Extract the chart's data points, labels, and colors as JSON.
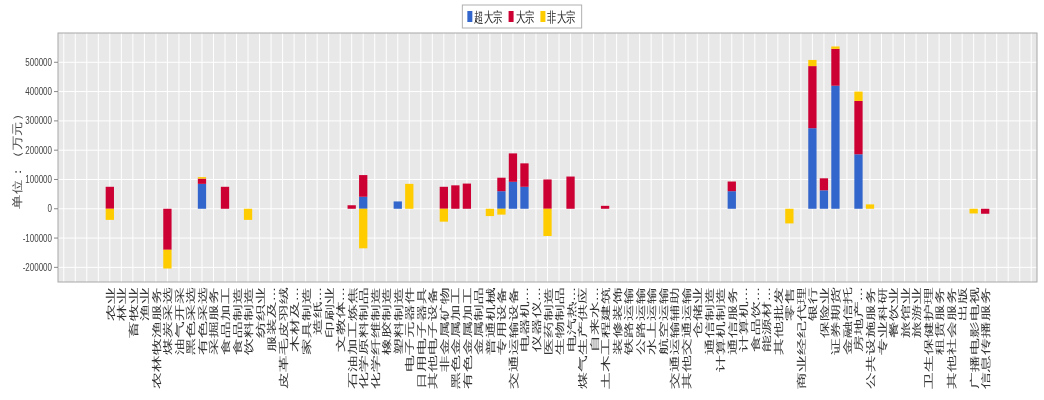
{
  "chart_data": {
    "type": "bar",
    "stacked": true,
    "ylabel": "单位：（万元）",
    "categories": [
      null,
      null,
      null,
      null,
      "农业",
      "林业",
      "畜牧业",
      "渔业",
      "农林牧渔服务",
      "煤炭采选",
      "油气开采",
      "黑色采选",
      "有色采选",
      "采掘服务",
      "食品加工",
      "食品制造",
      "饮料制造",
      "纺织业",
      "服装及...",
      "皮革毛皮羽绒",
      "木材及...",
      "家具制造",
      "造纸...",
      "印刷业",
      "文教体...",
      "石油加工炼焦",
      "化学原料制品",
      "化学纤维制造",
      "橡胶制造",
      "塑料制造",
      "电子元器件",
      "日用电子器具",
      "其他电子设备",
      "非金属矿物",
      "黑色金属加工",
      "有色金属加工",
      "金属制品",
      "普通机械",
      "专用设备",
      "交通运输设备",
      "电器机...",
      "仪器仪...",
      "医药制造",
      "生物制品",
      "电汽热...",
      "煤气生产供应",
      "自来水...",
      "土木工程建筑",
      "装修装饰",
      "铁路运输",
      "公路运输",
      "水上运输",
      "航空运输",
      "交通运输辅助",
      "其他交通运输",
      "仓储业",
      "通信制造",
      "计算机制造",
      "通信服务",
      "计算机...",
      "食品饮...",
      "能源材...",
      "其他批发",
      "零售",
      "商业经纪代理",
      "银行",
      "保险业",
      "证券期货",
      "金融信托",
      "房地产...",
      "公共设施服务",
      "专业科研",
      "餐饮业",
      "旅馆业",
      "旅游业",
      "卫生保健护理",
      "租赁服务",
      "其他社会服务",
      "出版",
      "广播电影电视",
      "信息传播服务",
      null,
      null,
      null,
      null
    ],
    "series": [
      {
        "name": "超大宗",
        "color": "#3366cc",
        "values": [
          null,
          null,
          null,
          null,
          null,
          null,
          null,
          null,
          null,
          null,
          null,
          null,
          85000,
          null,
          null,
          null,
          null,
          null,
          null,
          null,
          null,
          null,
          null,
          null,
          null,
          null,
          41000,
          null,
          null,
          25000,
          null,
          null,
          null,
          null,
          null,
          null,
          null,
          null,
          60000,
          92000,
          75000,
          null,
          null,
          null,
          null,
          null,
          null,
          null,
          null,
          null,
          null,
          null,
          null,
          null,
          null,
          null,
          null,
          null,
          60000,
          null,
          null,
          null,
          null,
          null,
          null,
          275000,
          63000,
          420000,
          null,
          186000,
          null,
          null,
          null,
          null,
          null,
          null,
          null,
          null,
          null,
          null,
          null,
          null,
          null,
          null,
          null
        ]
      },
      {
        "name": "大宗",
        "color": "#cc0033",
        "values": [
          null,
          null,
          null,
          null,
          75000,
          null,
          null,
          null,
          null,
          -140000,
          null,
          null,
          18000,
          null,
          75000,
          null,
          null,
          null,
          null,
          null,
          null,
          null,
          null,
          null,
          null,
          12000,
          74000,
          null,
          null,
          null,
          null,
          null,
          null,
          75000,
          80000,
          86000,
          null,
          null,
          46000,
          97000,
          80000,
          null,
          100000,
          null,
          110000,
          null,
          null,
          10000,
          null,
          null,
          null,
          null,
          null,
          null,
          null,
          null,
          null,
          null,
          33000,
          null,
          null,
          null,
          null,
          null,
          null,
          212000,
          41000,
          126000,
          null,
          182000,
          null,
          null,
          null,
          null,
          null,
          null,
          null,
          null,
          null,
          null,
          -17000,
          null,
          null,
          null,
          null
        ]
      },
      {
        "name": "非大宗",
        "color": "#ffcc00",
        "values": [
          null,
          null,
          null,
          null,
          -38000,
          null,
          null,
          null,
          null,
          -64000,
          null,
          null,
          5000,
          null,
          null,
          null,
          -38000,
          null,
          null,
          null,
          null,
          null,
          null,
          null,
          null,
          null,
          -135000,
          null,
          null,
          null,
          85000,
          null,
          null,
          -44000,
          null,
          null,
          null,
          -25000,
          -20000,
          null,
          null,
          null,
          -93000,
          null,
          null,
          null,
          null,
          null,
          null,
          null,
          null,
          null,
          null,
          null,
          null,
          null,
          null,
          null,
          null,
          null,
          null,
          null,
          null,
          -50000,
          null,
          21000,
          null,
          8000,
          null,
          32000,
          15000,
          null,
          null,
          null,
          null,
          null,
          null,
          null,
          null,
          -16000,
          null,
          null,
          null,
          null,
          null
        ]
      }
    ],
    "ylim": [
      -250000,
      600000
    ],
    "yticks": [
      -200000,
      -100000,
      0,
      100000,
      200000,
      300000,
      400000,
      500000
    ],
    "grid": true,
    "legend": "top"
  }
}
